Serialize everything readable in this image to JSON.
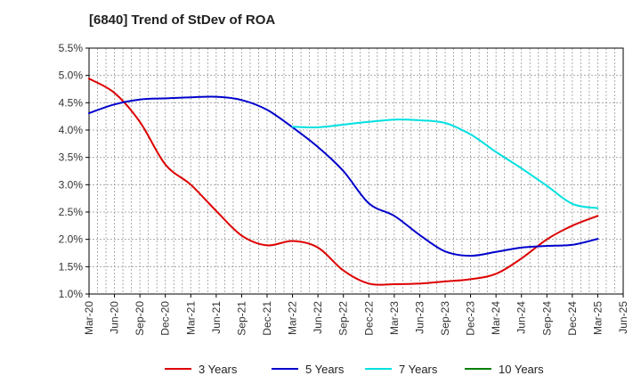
{
  "chart_data": {
    "type": "line",
    "title": "[6840]  Trend of StDev of ROA",
    "xlabel": "",
    "ylabel": "",
    "categories": [
      "Mar-20",
      "Jun-20",
      "Sep-20",
      "Dec-20",
      "Mar-21",
      "Jun-21",
      "Sep-21",
      "Dec-21",
      "Mar-22",
      "Jun-22",
      "Sep-22",
      "Dec-22",
      "Mar-23",
      "Jun-23",
      "Sep-23",
      "Dec-23",
      "Mar-24",
      "Jun-24",
      "Sep-24",
      "Dec-24",
      "Mar-25",
      "Jun-25"
    ],
    "y_ticks": [
      "1.0%",
      "1.5%",
      "2.0%",
      "2.5%",
      "3.0%",
      "3.5%",
      "4.0%",
      "4.5%",
      "5.0%",
      "5.5%"
    ],
    "ylim": [
      1.0,
      5.5
    ],
    "y_unit": "%",
    "grid": true,
    "legend_position": "bottom",
    "series": [
      {
        "name": "3 Years",
        "color": "#dd0000",
        "values": [
          4.94,
          4.68,
          4.15,
          3.37,
          3.0,
          2.52,
          2.07,
          1.89,
          1.97,
          1.85,
          1.43,
          1.19,
          1.18,
          1.19,
          1.23,
          1.27,
          1.37,
          1.65,
          2.0,
          2.25,
          2.43,
          null
        ]
      },
      {
        "name": "5 Years",
        "color": "#0000cc",
        "values": [
          4.31,
          4.47,
          4.56,
          4.58,
          4.6,
          4.61,
          4.55,
          4.37,
          4.05,
          3.69,
          3.25,
          2.66,
          2.43,
          2.08,
          1.78,
          1.7,
          1.77,
          1.85,
          1.88,
          1.9,
          2.01,
          null
        ]
      },
      {
        "name": "7 Years",
        "color": "#00e0e0",
        "values": [
          null,
          null,
          null,
          null,
          null,
          null,
          null,
          null,
          4.06,
          4.05,
          4.1,
          4.15,
          4.19,
          4.18,
          4.13,
          3.92,
          3.6,
          3.3,
          2.98,
          2.65,
          2.57,
          null
        ]
      },
      {
        "name": "10 Years",
        "color": "#008000",
        "values": [
          null,
          null,
          null,
          null,
          null,
          null,
          null,
          null,
          null,
          null,
          null,
          null,
          null,
          null,
          null,
          null,
          null,
          null,
          null,
          null,
          null,
          null
        ]
      }
    ]
  }
}
